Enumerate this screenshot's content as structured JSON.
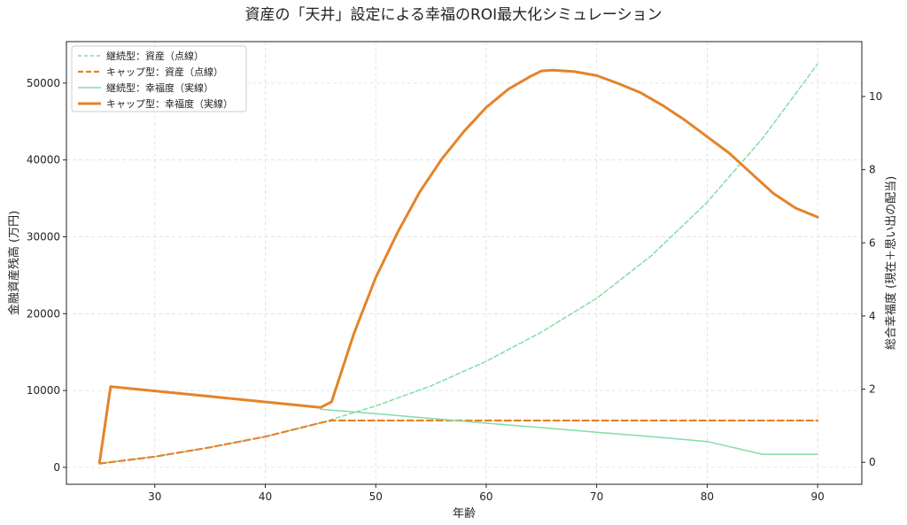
{
  "chart_data": {
    "type": "line",
    "title": "資産の「天井」設定による幸福のROI最大化シミュレーション",
    "xlabel": "年齢",
    "ylabel_left": "金融資産残高 (万円)",
    "ylabel_right": "総合幸福度 (現在＋思い出の配当)",
    "xlim": [
      22,
      94
    ],
    "ylim_left": [
      -2200,
      55400
    ],
    "ylim_right": [
      -0.6,
      11.5
    ],
    "x_ticks": [
      30,
      40,
      50,
      60,
      70,
      80,
      90
    ],
    "y_left_ticks": [
      0,
      10000,
      20000,
      30000,
      40000,
      50000
    ],
    "y_right_ticks": [
      0,
      2,
      4,
      6,
      8,
      10
    ],
    "grid": true,
    "legend_position": "upper-left",
    "colors": {
      "green": "#82dca8",
      "orange": "#e5832a"
    },
    "series": [
      {
        "name": "継続型：資産（点線）",
        "axis": "left",
        "style": "dashed",
        "color": "#82dca8",
        "width": 1.5,
        "x": [
          25,
          30,
          35,
          40,
          45,
          50,
          55,
          60,
          65,
          70,
          75,
          80,
          85,
          90
        ],
        "values": [
          500,
          1400,
          2600,
          4000,
          5800,
          8000,
          10600,
          13800,
          17600,
          22000,
          27600,
          34500,
          42800,
          52500
        ]
      },
      {
        "name": "キャップ型：資産（点線）",
        "axis": "left",
        "style": "dashed",
        "color": "#e5832a",
        "width": 2.2,
        "x": [
          25,
          30,
          35,
          40,
          45,
          46,
          50,
          60,
          70,
          80,
          90
        ],
        "values": [
          500,
          1400,
          2600,
          4000,
          5800,
          6100,
          6100,
          6100,
          6100,
          6100,
          6100
        ]
      },
      {
        "name": "継続型：幸福度（実線）",
        "axis": "right",
        "style": "solid",
        "color": "#82dca8",
        "width": 1.5,
        "x": [
          45,
          50,
          55,
          60,
          65,
          70,
          75,
          80,
          85,
          90
        ],
        "values": [
          1.45,
          1.33,
          1.2,
          1.07,
          0.95,
          0.82,
          0.7,
          0.57,
          0.22,
          0.22
        ]
      },
      {
        "name": "キャップ型：幸福度（実線）",
        "axis": "right",
        "style": "solid",
        "color": "#e5832a",
        "width": 3,
        "x": [
          25,
          26,
          30,
          35,
          40,
          45,
          46,
          48,
          50,
          52,
          54,
          56,
          58,
          60,
          62,
          64,
          65,
          66,
          68,
          70,
          72,
          74,
          76,
          78,
          80,
          82,
          84,
          86,
          88,
          90
        ],
        "values": [
          0.0,
          2.07,
          1.95,
          1.8,
          1.65,
          1.5,
          1.65,
          3.5,
          5.05,
          6.3,
          7.4,
          8.3,
          9.05,
          9.7,
          10.2,
          10.55,
          10.7,
          10.72,
          10.68,
          10.57,
          10.35,
          10.1,
          9.75,
          9.35,
          8.9,
          8.45,
          7.9,
          7.35,
          6.95,
          6.7
        ]
      }
    ]
  }
}
